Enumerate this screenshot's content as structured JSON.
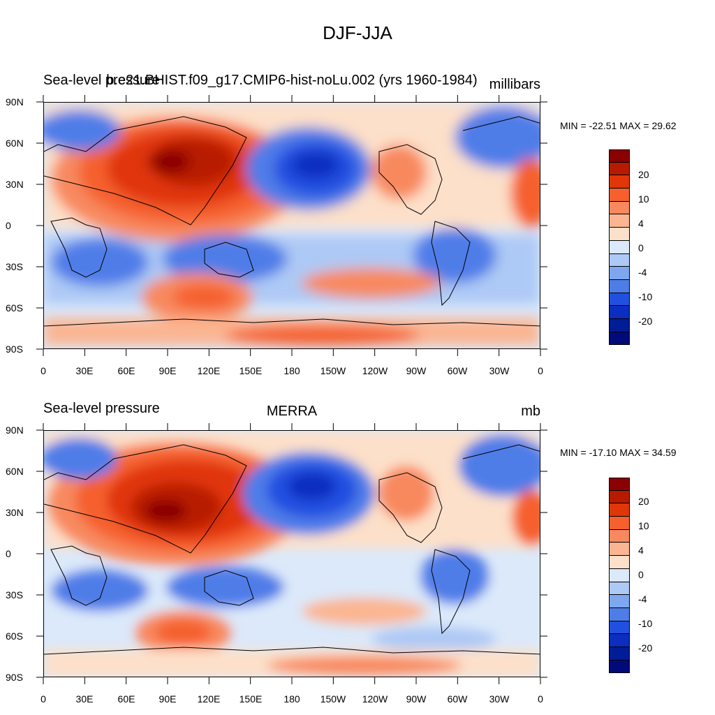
{
  "figure": {
    "title": "DJF-JJA"
  },
  "panels": [
    {
      "left_title": "Sea-level pressure",
      "center_title": "b.e21.BHIST.f09_g17.CMIP6-hist-noLu.002 (yrs 1960-1984)",
      "right_title": "millibars",
      "min_max": "MIN = -22.51 MAX =  29.62"
    },
    {
      "left_title": "Sea-level pressure",
      "center_title": "MERRA",
      "right_title": "mb",
      "min_max": "MIN = -17.10 MAX =  34.59"
    }
  ],
  "axes": {
    "lat_labels": [
      "90N",
      "60N",
      "30N",
      "0",
      "30S",
      "60S",
      "90S"
    ],
    "lon_labels": [
      "0",
      "30E",
      "60E",
      "90E",
      "120E",
      "150E",
      "180",
      "150W",
      "120W",
      "90W",
      "60W",
      "30W",
      "0"
    ]
  },
  "colorbar": {
    "labels": [
      "20",
      "10",
      "4",
      "0",
      "-4",
      "-10",
      "-20"
    ],
    "colors": [
      "#8b0000",
      "#b81a00",
      "#e0360a",
      "#f5602e",
      "#f8895e",
      "#fbb592",
      "#fde0c9",
      "#dbe9fa",
      "#adc9f5",
      "#7ea7ef",
      "#4f7de8",
      "#2150e0",
      "#0b2dc0",
      "#001c96",
      "#000a78"
    ]
  }
}
